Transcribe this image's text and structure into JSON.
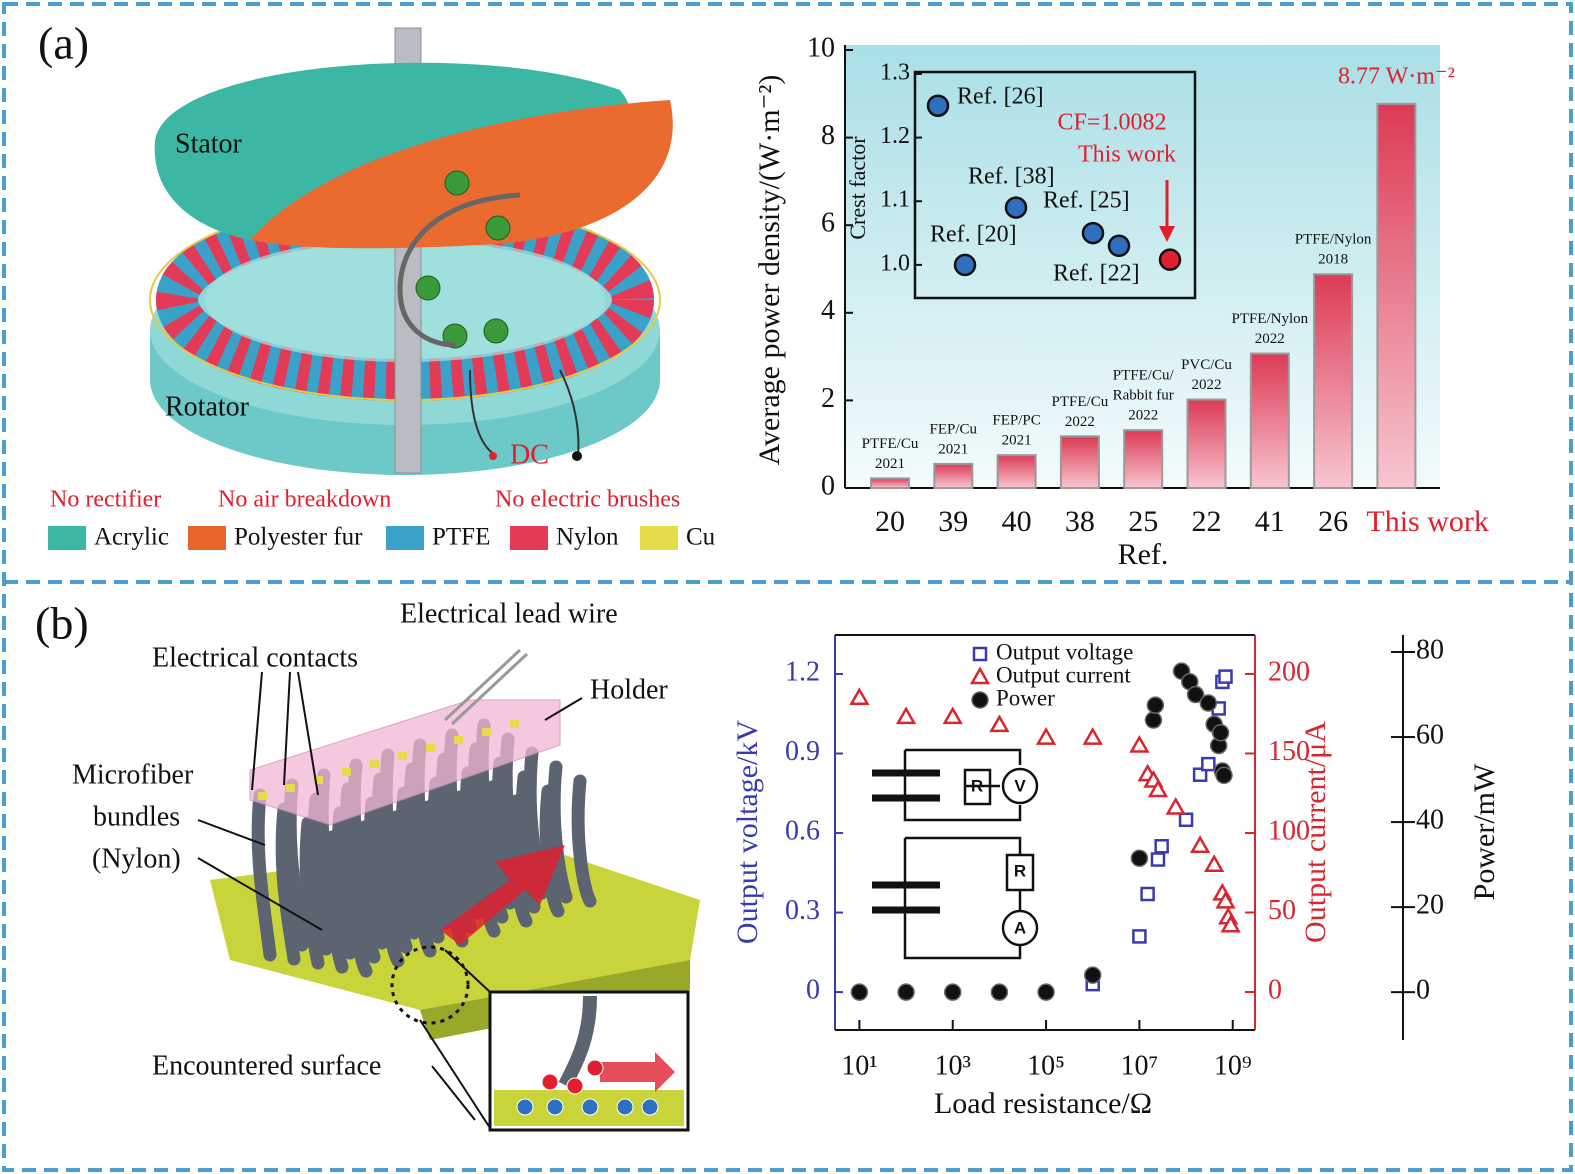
{
  "panel_a": {
    "label": "(a)",
    "parts": [
      "Stator",
      "Rotator",
      "DC"
    ],
    "notes": [
      "No rectifier",
      "No air breakdown",
      "No electric brushes"
    ],
    "legend": [
      {
        "name": "Acrylic",
        "color": "#3cb7a3"
      },
      {
        "name": "Polyester fur",
        "color": "#e8662c"
      },
      {
        "name": "PTFE",
        "color": "#3aa2c8"
      },
      {
        "name": "Nylon",
        "color": "#e23a57"
      },
      {
        "name": "Cu",
        "color": "#e6dc4a"
      }
    ]
  },
  "panel_b": {
    "label": "(b)",
    "callouts": [
      "Electrical lead wire",
      "Electrical contacts",
      "Holder",
      "Encountered surface"
    ],
    "microfiber": [
      "Microfiber",
      "bundles",
      "(Nylon)"
    ],
    "circuit": [
      "R",
      "V",
      "R",
      "A"
    ]
  },
  "chart_data": [
    {
      "type": "bar",
      "categories": [
        "20",
        "39",
        "40",
        "38",
        "25",
        "22",
        "41",
        "26",
        "This work"
      ],
      "category_colors": [
        "#111111",
        "#111111",
        "#111111",
        "#111111",
        "#111111",
        "#111111",
        "#111111",
        "#111111",
        "#e0202e"
      ],
      "values": [
        0.22,
        0.55,
        0.75,
        1.18,
        1.32,
        2.02,
        3.07,
        4.88,
        8.77
      ],
      "value_labels": [
        null,
        null,
        null,
        null,
        null,
        null,
        null,
        null,
        "8.77 W·m⁻²"
      ],
      "bar_labels": [
        [
          "PTFE/Cu",
          "2021"
        ],
        [
          "FEP/Cu",
          "2021"
        ],
        [
          "FEP/PC",
          "2021"
        ],
        [
          "PTFE/Cu",
          "2022"
        ],
        [
          "PTFE/Cu/",
          "Rabbit fur",
          "2022"
        ],
        [
          "PVC/Cu",
          "2022"
        ],
        [
          "PTFE/Nylon",
          "2022"
        ],
        [
          "PTFE/Nylon",
          "2018"
        ],
        null
      ],
      "color": "#e0475f",
      "xlabel": "Ref.",
      "ylabel": "Average power density/(W·m⁻²)",
      "ylim": [
        0,
        10
      ],
      "yticks": [
        0,
        2,
        4,
        6,
        8,
        10
      ]
    },
    {
      "type": "scatter",
      "ylabel": "Crest factor",
      "categories": [
        "Ref. [26]",
        "Ref. [20]",
        "Ref. [38]",
        "Ref. [25]",
        "Ref. [22]",
        null
      ],
      "values": [
        1.25,
        1.0,
        1.09,
        1.05,
        1.03,
        1.0082
      ],
      "colors": [
        "#2f6fbf",
        "#2f6fbf",
        "#2f6fbf",
        "#2f6fbf",
        "#2f6fbf",
        "#e0202e"
      ],
      "annotations": [
        "CF=1.0082",
        "This work"
      ],
      "ylim": [
        0.948,
        1.303
      ],
      "yticks": [
        {
          "value": 1.0,
          "label": "1.0"
        },
        {
          "value": 1.1,
          "label": "1.1"
        },
        {
          "value": 1.2,
          "label": "1.2"
        },
        {
          "value": 1.3,
          "label": "1.3"
        }
      ]
    },
    {
      "type": "scatter",
      "xlabel": "Load resistance/Ω",
      "ylabel": "Output voltage/kV",
      "y2label": "Output current/μA",
      "y3label": "Power/mW",
      "log_x": true,
      "xlim": [
        3,
        3000000000
      ],
      "xticks": [
        {
          "value": 10,
          "label": "10¹"
        },
        {
          "value": 1000,
          "label": "10³"
        },
        {
          "value": 100000,
          "label": "10⁵"
        },
        {
          "value": 10000000,
          "label": "10⁷"
        },
        {
          "value": 1000000000,
          "label": "10⁹"
        }
      ],
      "ylim": [
        -0.143,
        1.347
      ],
      "yticks": [
        0,
        0.3,
        0.6,
        0.9,
        1.2
      ],
      "y2lim": [
        -23.9,
        224.5
      ],
      "y2ticks": [
        0,
        50,
        100,
        150,
        200
      ],
      "y3lim": [
        -8.9,
        84
      ],
      "y3ticks": [
        0,
        20,
        40,
        60,
        80
      ],
      "series": [
        {
          "name": "Output voltage",
          "color": "#3a3ab0",
          "marker": "square",
          "axis": "y",
          "x": [
            1000000,
            10000000,
            15000000,
            25000000,
            30000000,
            100000000,
            200000000,
            300000000,
            500000000,
            600000000,
            700000000
          ],
          "values": [
            0.03,
            0.21,
            0.37,
            0.5,
            0.55,
            0.65,
            0.82,
            0.86,
            1.07,
            1.17,
            1.19
          ]
        },
        {
          "name": "Output current",
          "color": "#d9262e",
          "marker": "triangle",
          "axis": "y2",
          "x": [
            10,
            100,
            1000,
            10000,
            100000,
            1000000,
            10000000,
            15000000,
            20000000,
            25000000,
            60000000,
            200000000,
            400000000,
            600000000,
            700000000,
            800000000,
            900000000
          ],
          "values": [
            185,
            173,
            173,
            168,
            160,
            160,
            155,
            137,
            133,
            127,
            116,
            92,
            80,
            62,
            57,
            47,
            42
          ]
        },
        {
          "name": "Power",
          "color": "#111111",
          "marker": "circle",
          "axis": "y3",
          "x": [
            10,
            100,
            1000,
            10000,
            100000,
            1000000,
            10000000,
            20000000,
            22000000,
            80000000,
            120000000,
            160000000,
            300000000,
            400000000,
            500000000,
            550000000,
            600000000,
            650000000
          ],
          "values": [
            0,
            0,
            0,
            0,
            0,
            4,
            31.5,
            64,
            67.5,
            75.5,
            73,
            70,
            68,
            63,
            58,
            61,
            52,
            51
          ]
        }
      ]
    }
  ]
}
